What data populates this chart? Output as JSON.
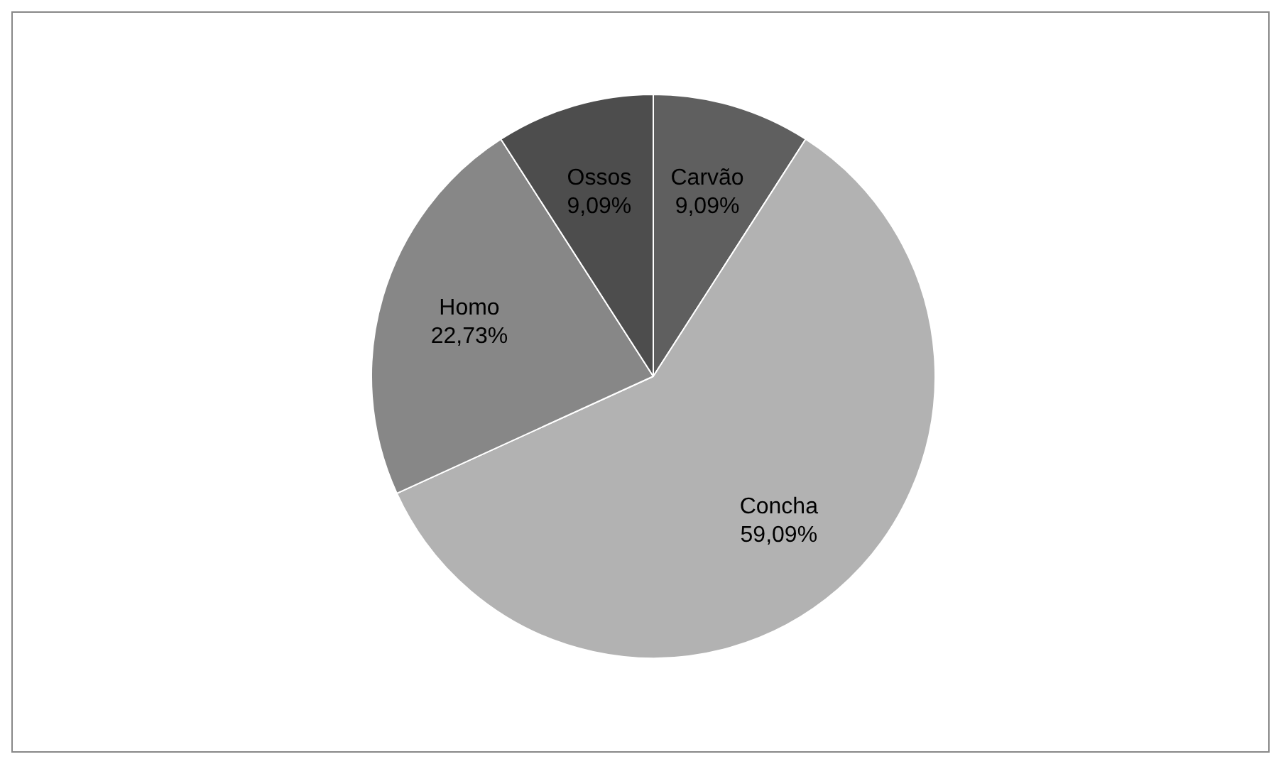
{
  "chart_data": {
    "type": "pie",
    "categories": [
      "Carvão",
      "Concha",
      "Homo",
      "Ossos"
    ],
    "values": [
      9.09,
      59.09,
      22.73,
      9.09
    ],
    "colors": [
      "#5f5f5f",
      "#b2b2b2",
      "#878787",
      "#4d4d4d"
    ],
    "value_labels": [
      "9,09%",
      "59,09%",
      "22,73%",
      "9,09%"
    ],
    "legend": false
  }
}
